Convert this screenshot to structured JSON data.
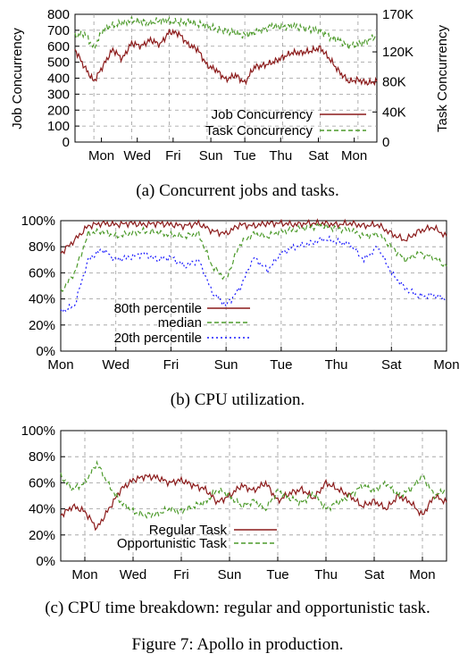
{
  "figure_caption": "Figure 7: Apollo in production.",
  "chart_data": [
    {
      "id": "a",
      "type": "line",
      "caption": "(a) Concurrent jobs and tasks.",
      "xlabel": "",
      "ylabel": "Job Concurrency",
      "y2label": "Task Concurrency",
      "x_ticks": [
        "Mon",
        "Wed",
        "Fri",
        "Sun",
        "Tue",
        "Thu",
        "Sat",
        "Mon"
      ],
      "ylim": [
        0,
        800
      ],
      "y_ticks": [
        0,
        100,
        200,
        300,
        400,
        500,
        600,
        700,
        800
      ],
      "y2lim": [
        0,
        170000
      ],
      "y2_ticks": [
        "0",
        "40K",
        "80K",
        "120K",
        "170K"
      ],
      "y2_tick_values": [
        0,
        40000,
        80000,
        120000,
        170000
      ],
      "grid": true,
      "legend_position": "bottom-right",
      "series": [
        {
          "name": "Job Concurrency",
          "axis": "left",
          "color": "#8b1a1a",
          "dash": "solid",
          "x": [
            0,
            0.5,
            1,
            1.5,
            2,
            2.5,
            3,
            3.5,
            4,
            4.5,
            5,
            5.5,
            6,
            6.5,
            7,
            7.5,
            8,
            8.5,
            9,
            9.5,
            10,
            10.5,
            11,
            11.5,
            12,
            12.5,
            13,
            13.5,
            14,
            14.5,
            15,
            15.5,
            16
          ],
          "values": [
            580,
            470,
            380,
            480,
            580,
            520,
            620,
            600,
            640,
            610,
            690,
            680,
            610,
            580,
            480,
            450,
            390,
            420,
            370,
            470,
            480,
            500,
            530,
            560,
            560,
            570,
            590,
            520,
            440,
            380,
            390,
            370,
            380
          ]
        },
        {
          "name": "Task Concurrency",
          "axis": "right",
          "color": "#4c9a2a",
          "dash": "dashed",
          "x": [
            0,
            0.5,
            1,
            1.5,
            2,
            2.5,
            3,
            3.5,
            4,
            4.5,
            5,
            5.5,
            6,
            6.5,
            7,
            7.5,
            8,
            8.5,
            9,
            9.5,
            10,
            10.5,
            11,
            11.5,
            12,
            12.5,
            13,
            13.5,
            14,
            14.5,
            15,
            15.5,
            16
          ],
          "values": [
            140000,
            145000,
            125000,
            150000,
            155000,
            158000,
            162000,
            160000,
            158000,
            162000,
            161000,
            159000,
            160000,
            157000,
            155000,
            150000,
            148000,
            145000,
            142000,
            146000,
            150000,
            155000,
            153000,
            155000,
            152000,
            150000,
            148000,
            140000,
            135000,
            128000,
            130000,
            135000,
            142000
          ]
        }
      ]
    },
    {
      "id": "b",
      "type": "line",
      "caption": "(b) CPU utilization.",
      "xlabel": "",
      "ylabel": "",
      "x_ticks": [
        "Mon",
        "Wed",
        "Fri",
        "Sun",
        "Tue",
        "Thu",
        "Sat",
        "Mon"
      ],
      "ylim": [
        0,
        100
      ],
      "y_ticks": [
        "0%",
        "20%",
        "40%",
        "60%",
        "80%",
        "100%"
      ],
      "y_tick_values": [
        0,
        20,
        40,
        60,
        80,
        100
      ],
      "grid": true,
      "legend_position": "bottom-left",
      "series": [
        {
          "name": "80th percentile",
          "color": "#8b1a1a",
          "dash": "solid",
          "x": [
            0,
            0.5,
            1,
            1.5,
            2,
            2.5,
            3,
            3.5,
            4,
            4.5,
            5,
            5.5,
            6,
            6.5,
            7,
            7.5,
            8,
            8.5,
            9,
            9.5,
            10,
            10.5,
            11,
            11.5,
            12,
            12.5,
            13,
            13.5,
            14
          ],
          "values": [
            75,
            85,
            96,
            98,
            97,
            98,
            97,
            98,
            97,
            96,
            98,
            92,
            90,
            97,
            96,
            98,
            98,
            97,
            98,
            98,
            97,
            98,
            96,
            97,
            90,
            85,
            92,
            95,
            88
          ]
        },
        {
          "name": "median",
          "color": "#4c9a2a",
          "dash": "dashed",
          "x": [
            0,
            0.5,
            1,
            1.5,
            2,
            2.5,
            3,
            3.5,
            4,
            4.5,
            5,
            5.5,
            6,
            6.5,
            7,
            7.5,
            8,
            8.5,
            9,
            9.5,
            10,
            10.5,
            11,
            11.5,
            12,
            12.5,
            13,
            13.5,
            14
          ],
          "values": [
            45,
            60,
            90,
            92,
            88,
            90,
            92,
            91,
            89,
            88,
            90,
            65,
            55,
            82,
            90,
            88,
            92,
            93,
            95,
            96,
            94,
            93,
            88,
            90,
            80,
            70,
            75,
            72,
            65
          ]
        },
        {
          "name": "20th percentile",
          "color": "#1a1aff",
          "dash": "dotted",
          "x": [
            0,
            0.5,
            1,
            1.5,
            2,
            2.5,
            3,
            3.5,
            4,
            4.5,
            5,
            5.5,
            6,
            6.5,
            7,
            7.5,
            8,
            8.5,
            9,
            9.5,
            10,
            10.5,
            11,
            11.5,
            12,
            12.5,
            13,
            13.5,
            14
          ],
          "values": [
            30,
            35,
            70,
            78,
            70,
            72,
            75,
            70,
            72,
            65,
            70,
            45,
            35,
            48,
            72,
            62,
            75,
            80,
            82,
            86,
            84,
            82,
            70,
            80,
            60,
            48,
            42,
            43,
            40
          ]
        }
      ]
    },
    {
      "id": "c",
      "type": "line",
      "caption": "(c) CPU time breakdown: regular and opportunistic task.",
      "xlabel": "",
      "ylabel": "",
      "x_ticks": [
        "Mon",
        "Wed",
        "Fri",
        "Sun",
        "Tue",
        "Thu",
        "Sat",
        "Mon"
      ],
      "ylim": [
        0,
        100
      ],
      "y_ticks": [
        "0%",
        "20%",
        "40%",
        "60%",
        "80%",
        "100%"
      ],
      "y_tick_values": [
        0,
        20,
        40,
        60,
        80,
        100
      ],
      "grid": true,
      "legend_position": "bottom-left",
      "series": [
        {
          "name": "Regular Task",
          "color": "#8b1a1a",
          "dash": "solid",
          "x": [
            0,
            0.5,
            1,
            1.5,
            2,
            2.5,
            3,
            3.5,
            4,
            4.5,
            5,
            5.5,
            6,
            6.5,
            7,
            7.5,
            8,
            8.5,
            9,
            9.5,
            10,
            10.5,
            11,
            11.5,
            12,
            12.5,
            13,
            13.5,
            14,
            14.5,
            15,
            15.5,
            16
          ],
          "values": [
            35,
            42,
            38,
            25,
            40,
            55,
            62,
            65,
            64,
            60,
            62,
            58,
            55,
            45,
            50,
            58,
            54,
            60,
            46,
            52,
            55,
            48,
            60,
            55,
            50,
            42,
            46,
            40,
            50,
            45,
            35,
            50,
            45
          ]
        },
        {
          "name": "Opportunistic Task",
          "color": "#4c9a2a",
          "dash": "dashed",
          "x": [
            0,
            0.5,
            1,
            1.5,
            2,
            2.5,
            3,
            3.5,
            4,
            4.5,
            5,
            5.5,
            6,
            6.5,
            7,
            7.5,
            8,
            8.5,
            9,
            9.5,
            10,
            10.5,
            11,
            11.5,
            12,
            12.5,
            13,
            13.5,
            14,
            14.5,
            15,
            15.5,
            16
          ],
          "values": [
            65,
            55,
            60,
            75,
            58,
            45,
            38,
            35,
            36,
            40,
            38,
            42,
            45,
            55,
            50,
            42,
            46,
            40,
            54,
            48,
            45,
            52,
            40,
            45,
            50,
            58,
            54,
            60,
            50,
            55,
            65,
            50,
            55
          ]
        }
      ]
    }
  ]
}
